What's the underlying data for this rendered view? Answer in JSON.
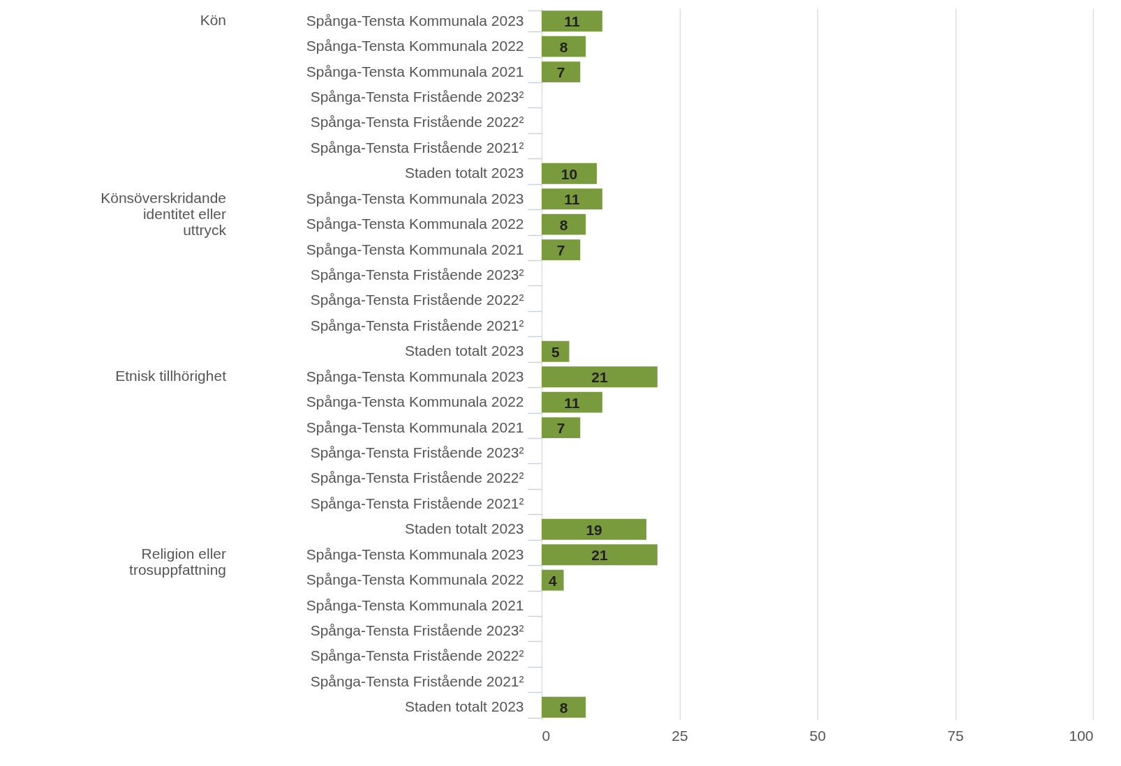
{
  "chart_data": {
    "type": "bar",
    "orientation": "horizontal",
    "categories": [
      "Spånga-Tensta Kommunala 2023",
      "Spånga-Tensta Kommunala 2022",
      "Spånga-Tensta Kommunala 2021",
      "Spånga-Tensta Fristående 2023²",
      "Spånga-Tensta Fristående 2022²",
      "Spånga-Tensta Fristående 2021²",
      "Staden totalt 2023",
      "Spånga-Tensta Kommunala 2023",
      "Spånga-Tensta Kommunala 2022",
      "Spånga-Tensta Kommunala 2021",
      "Spånga-Tensta Fristående 2023²",
      "Spånga-Tensta Fristående 2022²",
      "Spånga-Tensta Fristående 2021²",
      "Staden totalt 2023",
      "Spånga-Tensta Kommunala 2023",
      "Spånga-Tensta Kommunala 2022",
      "Spånga-Tensta Kommunala 2021",
      "Spånga-Tensta Fristående 2023²",
      "Spånga-Tensta Fristående 2022²",
      "Spånga-Tensta Fristående 2021²",
      "Staden totalt 2023",
      "Spånga-Tensta Kommunala 2023",
      "Spånga-Tensta Kommunala 2022",
      "Spånga-Tensta Kommunala 2021",
      "Spånga-Tensta Fristående 2023²",
      "Spånga-Tensta Fristående 2022²",
      "Spånga-Tensta Fristående 2021²",
      "Staden totalt 2023"
    ],
    "values": [
      11,
      8,
      7,
      null,
      null,
      null,
      10,
      11,
      8,
      7,
      null,
      null,
      null,
      5,
      21,
      11,
      7,
      null,
      null,
      null,
      19,
      21,
      4,
      null,
      null,
      null,
      null,
      8
    ],
    "color": "#7a9a3e",
    "xlim": [
      0,
      100
    ],
    "xticks": [
      0,
      25,
      50,
      75,
      100
    ],
    "grid": "x",
    "data_labels": true,
    "annotations": [
      "Kön",
      "Könsöverskridande identitet eller uttryck",
      "Etnisk tillhörighet",
      "Religion eller trosuppfattning"
    ]
  }
}
